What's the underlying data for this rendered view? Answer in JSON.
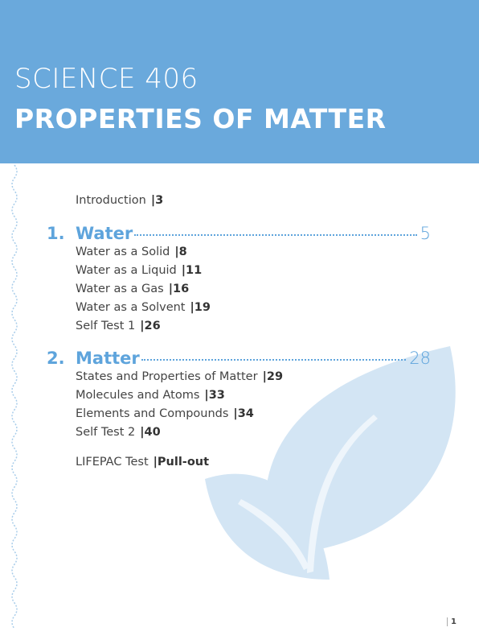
{
  "header": {
    "subject": "SCIENCE 406",
    "title": "PROPERTIES OF MATTER"
  },
  "intro": {
    "label": "Introduction",
    "page": "|3"
  },
  "sections": [
    {
      "number": "1.",
      "title": "Water",
      "page": "5",
      "items": [
        {
          "label": "Water as a Solid",
          "page": "|8"
        },
        {
          "label": "Water as a Liquid",
          "page": "|11"
        },
        {
          "label": "Water as a Gas",
          "page": "|16"
        },
        {
          "label": "Water as a Solvent",
          "page": "|19"
        },
        {
          "label": "Self Test 1",
          "page": "|26"
        }
      ]
    },
    {
      "number": "2.",
      "title": "Matter",
      "page": "28",
      "items": [
        {
          "label": "States and Properties of Matter",
          "page": "|29"
        },
        {
          "label": "Molecules and Atoms",
          "page": "|33"
        },
        {
          "label": "Elements and Compounds",
          "page": "|34"
        },
        {
          "label": "Self Test 2",
          "page": "|40"
        }
      ]
    }
  ],
  "test": {
    "label": "LIFEPAC Test",
    "page": "|Pull-out"
  },
  "page_number": "1"
}
